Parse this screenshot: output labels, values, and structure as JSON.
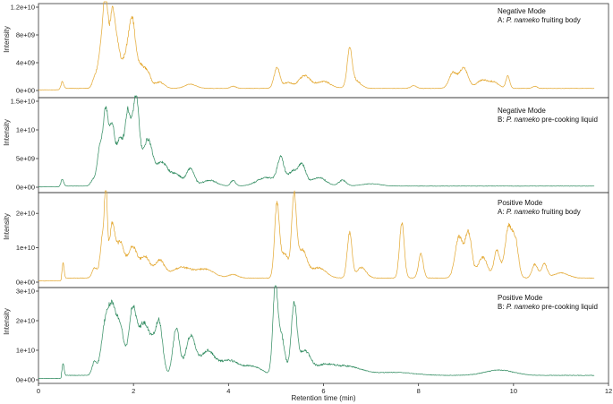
{
  "chart_data": [
    {
      "type": "line",
      "color": "#E3A72F",
      "ylim": [
        0,
        12000000000.0
      ],
      "yticks": [
        0,
        4000000000.0,
        8000000000.0,
        12000000000.0
      ],
      "ytick_labels": [
        "0e+00",
        "4e+09",
        "8e+09",
        "1.2e+10"
      ],
      "ylabel": "Intensity",
      "annotation": [
        "Negative Mode",
        "A: ",
        "P. nameko",
        " fruiting body"
      ],
      "baseline": 300000000.0,
      "peaks": [
        [
          0.5,
          1000000000.0,
          0.03
        ],
        [
          1.18,
          1200000000.0,
          0.05
        ],
        [
          1.33,
          6000000000.0,
          0.07
        ],
        [
          1.42,
          11000000000.0,
          0.05
        ],
        [
          1.55,
          9500000000.0,
          0.05
        ],
        [
          1.65,
          6000000000.0,
          0.06
        ],
        [
          1.82,
          4000000000.0,
          0.08
        ],
        [
          1.97,
          9500000000.0,
          0.07
        ],
        [
          2.15,
          3000000000.0,
          0.08
        ],
        [
          2.3,
          2000000000.0,
          0.07
        ],
        [
          2.55,
          900000000.0,
          0.1
        ],
        [
          3.2,
          600000000.0,
          0.12
        ],
        [
          4.1,
          300000000.0,
          0.06
        ],
        [
          5.02,
          3000000000.0,
          0.06
        ],
        [
          5.25,
          800000000.0,
          0.1
        ],
        [
          5.6,
          1800000000.0,
          0.12
        ],
        [
          6.0,
          1000000000.0,
          0.15
        ],
        [
          6.55,
          5000000000.0,
          0.05
        ],
        [
          6.65,
          1200000000.0,
          0.12
        ],
        [
          7.9,
          400000000.0,
          0.06
        ],
        [
          8.72,
          2200000000.0,
          0.08
        ],
        [
          8.95,
          3000000000.0,
          0.09
        ],
        [
          9.35,
          1200000000.0,
          0.12
        ],
        [
          9.6,
          800000000.0,
          0.1
        ],
        [
          9.88,
          1800000000.0,
          0.04
        ],
        [
          10.45,
          300000000.0,
          0.05
        ]
      ]
    },
    {
      "type": "line",
      "color": "#2E8A5E",
      "ylim": [
        0,
        15000000000.0
      ],
      "yticks": [
        0,
        5000000000.0,
        10000000000.0,
        15000000000.0
      ],
      "ytick_labels": [
        "0e+00",
        "5e+09",
        "1e+10",
        "1.5e+10"
      ],
      "ylabel": "Intensity",
      "annotation": [
        "Negative Mode",
        "B: ",
        "P. nameko",
        " pre-cooking liquid"
      ],
      "baseline": 200000000.0,
      "peaks": [
        [
          0.5,
          1200000000.0,
          0.03
        ],
        [
          1.15,
          1000000000.0,
          0.05
        ],
        [
          1.3,
          7000000000.0,
          0.06
        ],
        [
          1.42,
          12000000000.0,
          0.05
        ],
        [
          1.55,
          10000000000.0,
          0.06
        ],
        [
          1.72,
          8000000000.0,
          0.07
        ],
        [
          1.88,
          12000000000.0,
          0.06
        ],
        [
          2.05,
          15500000000.0,
          0.07
        ],
        [
          2.3,
          8000000000.0,
          0.1
        ],
        [
          2.6,
          4000000000.0,
          0.12
        ],
        [
          2.9,
          2000000000.0,
          0.12
        ],
        [
          3.2,
          3000000000.0,
          0.08
        ],
        [
          3.6,
          1000000000.0,
          0.15
        ],
        [
          4.1,
          1000000000.0,
          0.05
        ],
        [
          4.8,
          1500000000.0,
          0.2
        ],
        [
          5.1,
          4500000000.0,
          0.07
        ],
        [
          5.35,
          2500000000.0,
          0.1
        ],
        [
          5.55,
          3500000000.0,
          0.08
        ],
        [
          5.9,
          1500000000.0,
          0.15
        ],
        [
          6.4,
          1000000000.0,
          0.08
        ],
        [
          7.0,
          400000000.0,
          0.2
        ]
      ]
    },
    {
      "type": "line",
      "color": "#E3A72F",
      "ylim": [
        0,
        25000000000.0
      ],
      "yticks": [
        0,
        10000000000.0,
        20000000000.0
      ],
      "ytick_labels": [
        "0e+00",
        "1e+10",
        "2e+10"
      ],
      "ylabel": "Intensity",
      "annotation": [
        "Positive Mode",
        "A: ",
        "P. nameko",
        " fruiting body"
      ],
      "baseline": 1200000000.0,
      "peaks": [
        [
          0.52,
          4500000000.0,
          0.02
        ],
        [
          1.18,
          3000000000.0,
          0.05
        ],
        [
          1.35,
          12000000000.0,
          0.05
        ],
        [
          1.42,
          22000000000.0,
          0.03
        ],
        [
          1.55,
          15000000000.0,
          0.06
        ],
        [
          1.72,
          10000000000.0,
          0.08
        ],
        [
          1.98,
          9000000000.0,
          0.1
        ],
        [
          2.25,
          6000000000.0,
          0.1
        ],
        [
          2.55,
          5000000000.0,
          0.1
        ],
        [
          3.0,
          3000000000.0,
          0.2
        ],
        [
          3.5,
          2500000000.0,
          0.2
        ],
        [
          4.1,
          1000000000.0,
          0.1
        ],
        [
          5.02,
          21000000000.0,
          0.05
        ],
        [
          5.18,
          7000000000.0,
          0.08
        ],
        [
          5.38,
          23000000000.0,
          0.05
        ],
        [
          5.55,
          8000000000.0,
          0.1
        ],
        [
          5.9,
          3000000000.0,
          0.15
        ],
        [
          6.55,
          13000000000.0,
          0.05
        ],
        [
          6.8,
          3000000000.0,
          0.1
        ],
        [
          7.65,
          16000000000.0,
          0.05
        ],
        [
          8.05,
          7000000000.0,
          0.05
        ],
        [
          8.85,
          12000000000.0,
          0.08
        ],
        [
          9.05,
          13000000000.0,
          0.07
        ],
        [
          9.35,
          6000000000.0,
          0.1
        ],
        [
          9.65,
          8000000000.0,
          0.06
        ],
        [
          9.9,
          15000000000.0,
          0.08
        ],
        [
          10.05,
          9000000000.0,
          0.06
        ],
        [
          10.45,
          4000000000.0,
          0.06
        ],
        [
          10.65,
          4000000000.0,
          0.06
        ],
        [
          11.0,
          1500000000.0,
          0.15
        ]
      ]
    },
    {
      "type": "line",
      "color": "#2E8A5E",
      "ylim": [
        0,
        30000000000.0
      ],
      "yticks": [
        0,
        10000000000.0,
        20000000000.0,
        30000000000.0
      ],
      "ytick_labels": [
        "0e+00",
        "1e+10",
        "2e+10",
        "3e+10"
      ],
      "ylabel": "Intensity",
      "annotation": [
        "Positive Mode",
        "B: ",
        "P. nameko",
        " pre-cooking liquid"
      ],
      "baseline": 1500000000.0,
      "peaks": [
        [
          0.52,
          4000000000.0,
          0.02
        ],
        [
          1.18,
          4500000000.0,
          0.05
        ],
        [
          1.4,
          16000000000.0,
          0.08
        ],
        [
          1.55,
          20000000000.0,
          0.08
        ],
        [
          1.72,
          16000000000.0,
          0.08
        ],
        [
          1.98,
          22000000000.0,
          0.08
        ],
        [
          2.2,
          16000000000.0,
          0.1
        ],
        [
          2.4,
          10000000000.0,
          0.1
        ],
        [
          2.55,
          15000000000.0,
          0.07
        ],
        [
          2.9,
          16000000000.0,
          0.07
        ],
        [
          3.2,
          13000000000.0,
          0.1
        ],
        [
          3.55,
          8000000000.0,
          0.15
        ],
        [
          4.0,
          5000000000.0,
          0.2
        ],
        [
          4.5,
          3000000000.0,
          0.2
        ],
        [
          4.98,
          26000000000.0,
          0.05
        ],
        [
          5.1,
          14000000000.0,
          0.08
        ],
        [
          5.38,
          23000000000.0,
          0.06
        ],
        [
          5.6,
          8000000000.0,
          0.12
        ],
        [
          6.0,
          3000000000.0,
          0.2
        ],
        [
          6.5,
          3000000000.0,
          0.3
        ],
        [
          7.5,
          1000000000.0,
          0.4
        ],
        [
          9.7,
          1800000000.0,
          0.3
        ]
      ]
    }
  ],
  "xaxis": {
    "xlim": [
      0,
      12
    ],
    "ticks": [
      0,
      2,
      4,
      6,
      8,
      10,
      12
    ],
    "tick_labels": [
      "0",
      "2",
      "4",
      "6",
      "8",
      "10",
      "12"
    ],
    "xlabel": "Retention time (min)",
    "data_range": [
      0.0,
      11.7
    ]
  }
}
